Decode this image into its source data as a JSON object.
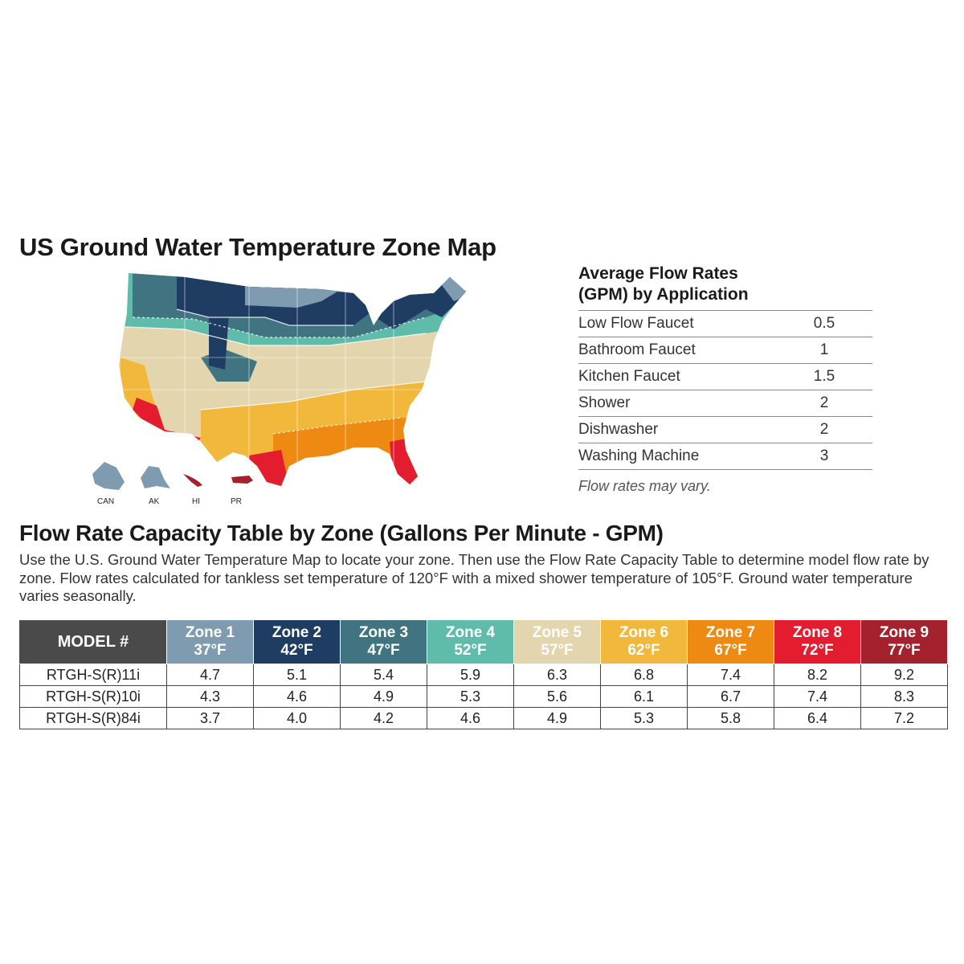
{
  "map": {
    "title": "US Ground Water Temperature Zone Map",
    "inset_labels": [
      "CAN",
      "AK",
      "HI",
      "PR"
    ]
  },
  "flow_rates": {
    "title_line1": "Average Flow Rates",
    "title_line2": "(GPM) by Application",
    "rows": [
      {
        "name": "Low Flow Faucet",
        "value": "0.5"
      },
      {
        "name": "Bathroom Faucet",
        "value": "1"
      },
      {
        "name": "Kitchen Faucet",
        "value": "1.5"
      },
      {
        "name": "Shower",
        "value": "2"
      },
      {
        "name": "Dishwasher",
        "value": "2"
      },
      {
        "name": "Washing Machine",
        "value": "3"
      }
    ],
    "note": "Flow rates may vary."
  },
  "capacity": {
    "title": "Flow Rate Capacity Table by Zone (Gallons Per Minute - GPM)",
    "description": "Use the U.S. Ground Water Temperature Map to locate your zone. Then use the Flow Rate Capacity Table to determine model flow rate by zone. Flow rates calculated for tankless set temperature of 120°F with a mixed shower temperature of 105°F. Ground water temperature varies seasonally.",
    "model_header": "MODEL #",
    "zones": [
      {
        "name": "Zone 1",
        "temp": "37°F",
        "color": "#7e9bb0"
      },
      {
        "name": "Zone 2",
        "temp": "42°F",
        "color": "#1f3c62"
      },
      {
        "name": "Zone 3",
        "temp": "47°F",
        "color": "#3f7480"
      },
      {
        "name": "Zone 4",
        "temp": "52°F",
        "color": "#5fbcab"
      },
      {
        "name": "Zone 5",
        "temp": "57°F",
        "color": "#e3d5ae"
      },
      {
        "name": "Zone 6",
        "temp": "62°F",
        "color": "#f2b83c"
      },
      {
        "name": "Zone 7",
        "temp": "67°F",
        "color": "#ee8a12"
      },
      {
        "name": "Zone 8",
        "temp": "72°F",
        "color": "#e31d2f"
      },
      {
        "name": "Zone 9",
        "temp": "77°F",
        "color": "#a4222d"
      }
    ],
    "rows": [
      {
        "model": "RTGH-S(R)11i",
        "values": [
          "4.7",
          "5.1",
          "5.4",
          "5.9",
          "6.3",
          "6.8",
          "7.4",
          "8.2",
          "9.2"
        ]
      },
      {
        "model": "RTGH-S(R)10i",
        "values": [
          "4.3",
          "4.6",
          "4.9",
          "5.3",
          "5.6",
          "6.1",
          "6.7",
          "7.4",
          "8.3"
        ]
      },
      {
        "model": "RTGH-S(R)84i",
        "values": [
          "3.7",
          "4.0",
          "4.2",
          "4.6",
          "4.9",
          "5.3",
          "5.8",
          "6.4",
          "7.2"
        ]
      }
    ]
  }
}
